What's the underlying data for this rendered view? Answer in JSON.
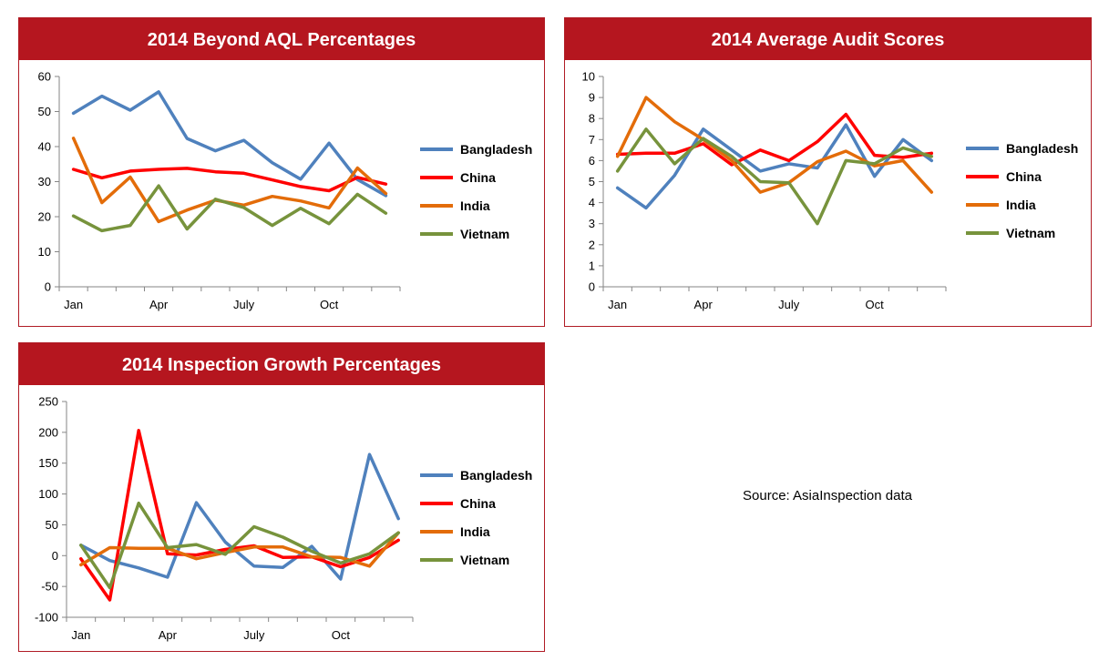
{
  "source_note": "Source: AsiaInspection data",
  "colors": {
    "header_bg": "#b5161f",
    "border": "#b01c25",
    "Bangladesh": "#4f81bd",
    "China": "#ff0000",
    "India": "#e36c09",
    "Vietnam": "#77933c"
  },
  "chart_data": [
    {
      "type": "line",
      "title": "2014 Beyond AQL Percentages",
      "categories": [
        "Jan",
        "Feb",
        "Mar",
        "Apr",
        "May",
        "Jun",
        "July",
        "Aug",
        "Sep",
        "Oct",
        "Nov",
        "Dec"
      ],
      "tick_labels": [
        "Jan",
        "",
        "",
        "Apr",
        "",
        "",
        "July",
        "",
        "",
        "Oct",
        "",
        ""
      ],
      "ylim": [
        0,
        60
      ],
      "ystep": 10,
      "legend_position": "right",
      "series": [
        {
          "name": "Bangladesh",
          "color": "#4f81bd",
          "values": [
            49.5,
            54.4,
            50.4,
            55.6,
            42.3,
            38.8,
            41.8,
            35.4,
            30.7,
            41.0,
            30.6,
            26.0
          ]
        },
        {
          "name": "China",
          "color": "#ff0000",
          "values": [
            33.5,
            31.1,
            33.0,
            33.5,
            33.8,
            32.8,
            32.4,
            30.5,
            28.6,
            27.4,
            31.2,
            29.3
          ]
        },
        {
          "name": "India",
          "color": "#e36c09",
          "values": [
            42.4,
            24.0,
            31.3,
            18.6,
            21.9,
            24.7,
            23.3,
            25.8,
            24.5,
            22.5,
            33.9,
            26.6
          ]
        },
        {
          "name": "Vietnam",
          "color": "#77933c",
          "values": [
            20.2,
            16.0,
            17.5,
            28.8,
            16.5,
            25.0,
            22.6,
            17.5,
            22.4,
            18.0,
            26.4,
            21.0
          ]
        }
      ]
    },
    {
      "type": "line",
      "title": "2014 Average Audit Scores",
      "categories": [
        "Jan",
        "Feb",
        "Mar",
        "Apr",
        "May",
        "Jun",
        "July",
        "Aug",
        "Sep",
        "Oct",
        "Nov",
        "Dec"
      ],
      "tick_labels": [
        "Jan",
        "",
        "",
        "Apr",
        "",
        "",
        "July",
        "",
        "",
        "Oct",
        "",
        ""
      ],
      "ylim": [
        0,
        10
      ],
      "ystep": 1,
      "legend_position": "right",
      "series": [
        {
          "name": "Bangladesh",
          "color": "#4f81bd",
          "values": [
            4.7,
            3.75,
            5.3,
            7.5,
            6.5,
            5.5,
            5.85,
            5.65,
            7.7,
            5.25,
            7.0,
            6.0
          ]
        },
        {
          "name": "China",
          "color": "#ff0000",
          "values": [
            6.3,
            6.35,
            6.35,
            6.8,
            5.8,
            6.5,
            6.0,
            6.9,
            8.2,
            6.25,
            6.15,
            6.35
          ]
        },
        {
          "name": "India",
          "color": "#e36c09",
          "values": [
            6.2,
            9.0,
            7.85,
            7.0,
            6.0,
            4.5,
            4.95,
            5.95,
            6.45,
            5.75,
            6.0,
            4.5
          ]
        },
        {
          "name": "Vietnam",
          "color": "#77933c",
          "values": [
            5.5,
            7.5,
            5.85,
            7.05,
            6.2,
            5.0,
            4.95,
            3.0,
            6.0,
            5.85,
            6.6,
            6.2
          ]
        }
      ]
    },
    {
      "type": "line",
      "title": "2014 Inspection Growth Percentages",
      "categories": [
        "Jan",
        "Feb",
        "Mar",
        "Apr",
        "May",
        "Jun",
        "July",
        "Aug",
        "Sep",
        "Oct",
        "Nov",
        "Dec"
      ],
      "tick_labels": [
        "Jan",
        "",
        "",
        "Apr",
        "",
        "",
        "July",
        "",
        "",
        "Oct",
        "",
        ""
      ],
      "ylim": [
        -100,
        250
      ],
      "ystep": 50,
      "legend_position": "right",
      "series": [
        {
          "name": "Bangladesh",
          "color": "#4f81bd",
          "values": [
            17,
            -8,
            -20,
            -35,
            86,
            22,
            -17,
            -19,
            15,
            -38,
            164,
            60
          ]
        },
        {
          "name": "China",
          "color": "#ff0000",
          "values": [
            -5,
            -72,
            203,
            3,
            1,
            10,
            16,
            -3,
            -2,
            -18,
            -3,
            25
          ]
        },
        {
          "name": "India",
          "color": "#e36c09",
          "values": [
            -15,
            13,
            12,
            12,
            -5,
            5,
            14,
            14,
            -2,
            -3,
            -17,
            37
          ]
        },
        {
          "name": "Vietnam",
          "color": "#77933c",
          "values": [
            17,
            -52,
            85,
            13,
            18,
            2,
            47,
            30,
            7,
            -12,
            3,
            37
          ]
        }
      ]
    }
  ]
}
